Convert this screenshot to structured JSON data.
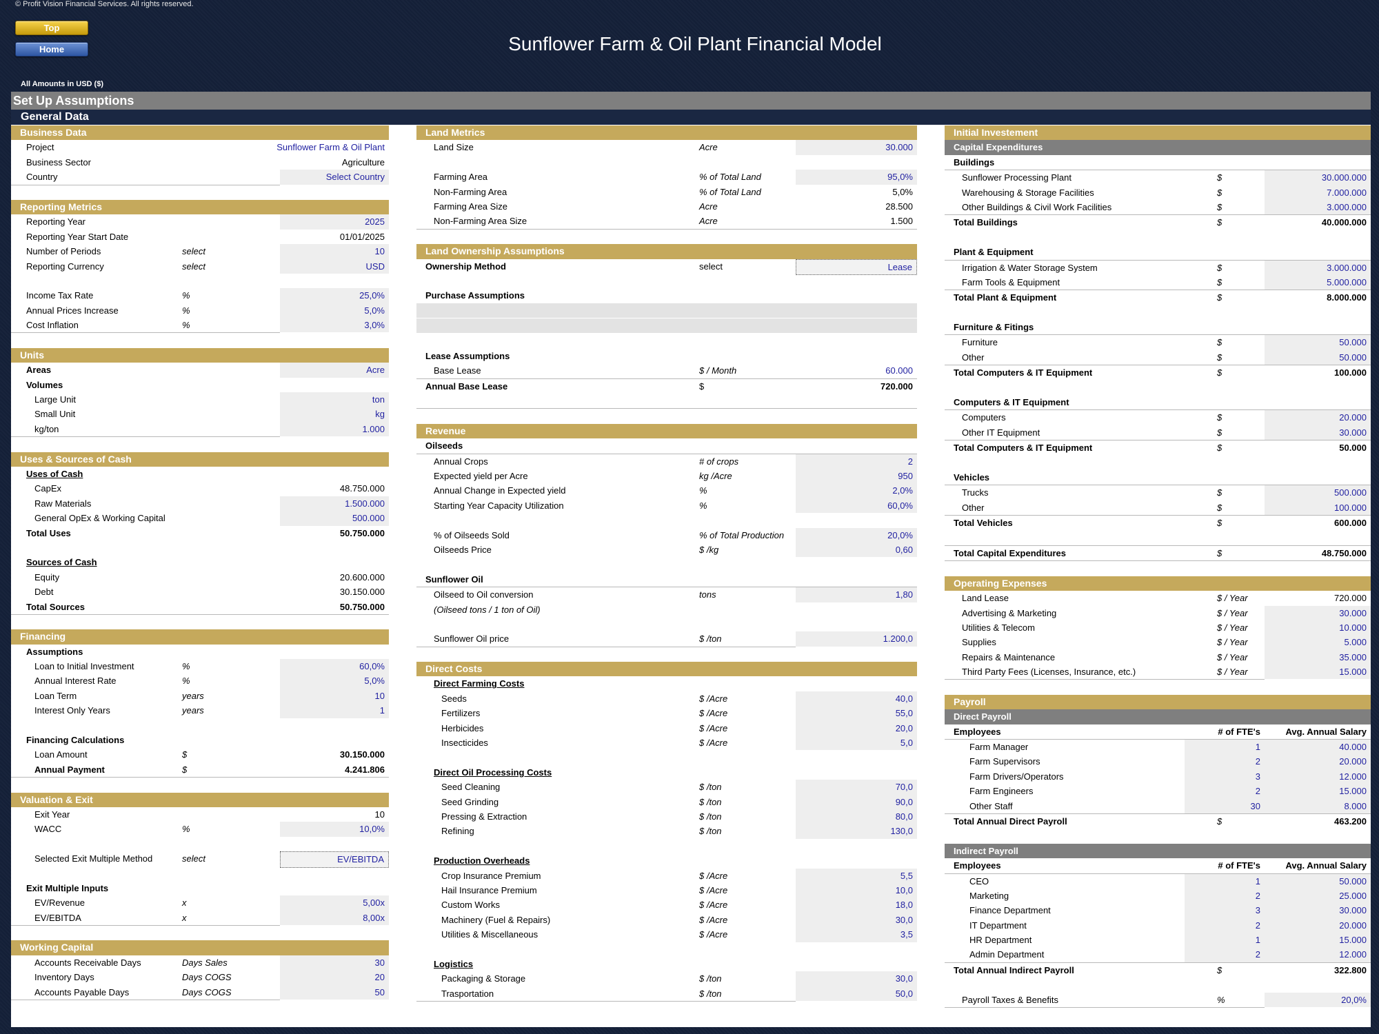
{
  "header": {
    "copyright": "© Profit Vision Financial Services. All rights reserved.",
    "btn_top": "Top",
    "btn_home": "Home",
    "title": "Sunflower Farm & Oil Plant Financial Model",
    "amounts": "All Amounts in  USD ($)",
    "setup": "Set Up Assumptions",
    "general": "General Data"
  },
  "col1": [
    {
      "title": "Business Data",
      "rows": [
        {
          "l": "Project",
          "v": "Sunflower Farm & Oil Plant",
          "t": "blue",
          "w": "wide"
        },
        {
          "l": "Business Sector",
          "v": "Agriculture",
          "w": "wide"
        },
        {
          "l": "Country",
          "v": "Select Country",
          "t": "inp"
        }
      ]
    },
    {
      "title": "Reporting Metrics",
      "rows": [
        {
          "l": "Reporting Year",
          "v": "2025",
          "t": "inp"
        },
        {
          "l": "Reporting Year Start Date",
          "v": "01/01/2025"
        },
        {
          "l": "Number of Periods",
          "u": "select",
          "v": "10",
          "t": "inp"
        },
        {
          "l": "Reporting Currency",
          "u": "select",
          "v": "USD",
          "t": "inp"
        },
        {
          "gap": true
        },
        {
          "l": "Income Tax Rate",
          "u": "%",
          "v": "25,0%",
          "t": "inp"
        },
        {
          "l": "Annual Prices Increase",
          "u": "%",
          "v": "5,0%",
          "t": "inp"
        },
        {
          "l": "Cost Inflation",
          "u": "%",
          "v": "3,0%",
          "t": "inp"
        }
      ]
    },
    {
      "title": "Units",
      "rows": [
        {
          "l": "Areas",
          "b": true,
          "v": "Acre",
          "t": "inp"
        },
        {
          "l": "Volumes",
          "b": true
        },
        {
          "l": "Large Unit",
          "i": 1,
          "v": "ton",
          "t": "inp"
        },
        {
          "l": "Small Unit",
          "i": 1,
          "v": "kg",
          "t": "inp"
        },
        {
          "l": "kg/ton",
          "i": 1,
          "v": "1.000",
          "t": "inp"
        }
      ]
    },
    {
      "title": "Uses & Sources of Cash",
      "rows": [
        {
          "l": "Uses of Cash",
          "b": true,
          "ul": true
        },
        {
          "l": "CapEx",
          "i": 1,
          "v": "48.750.000"
        },
        {
          "l": "Raw Materials",
          "i": 1,
          "v": "1.500.000",
          "t": "inp"
        },
        {
          "l": "General OpEx & Working Capital",
          "i": 1,
          "v": "500.000",
          "t": "inp"
        },
        {
          "l": "Total Uses",
          "b": true,
          "v": "50.750.000",
          "vb": true
        },
        {
          "gap": true
        },
        {
          "l": "Sources of Cash",
          "b": true,
          "ul": true
        },
        {
          "l": "Equity",
          "i": 1,
          "v": "20.600.000"
        },
        {
          "l": "Debt",
          "i": 1,
          "v": "30.150.000"
        },
        {
          "l": "Total Sources",
          "b": true,
          "v": "50.750.000",
          "vb": true
        }
      ]
    },
    {
      "title": "Financing",
      "rows": [
        {
          "l": "Assumptions",
          "b": true
        },
        {
          "l": "Loan to Initial Investment",
          "i": 1,
          "u": "%",
          "v": "60,0%",
          "t": "inp"
        },
        {
          "l": "Annual Interest Rate",
          "i": 1,
          "u": "%",
          "v": "5,0%",
          "t": "inp"
        },
        {
          "l": "Loan Term",
          "i": 1,
          "u": "years",
          "v": "10",
          "t": "inp"
        },
        {
          "l": "Interest Only Years",
          "i": 1,
          "u": "years",
          "v": "1",
          "t": "inp"
        },
        {
          "gap": true
        },
        {
          "l": "Financing Calculations",
          "b": true
        },
        {
          "l": "Loan Amount",
          "i": 1,
          "u": "$",
          "v": "30.150.000",
          "vb": true
        },
        {
          "l": "Annual Payment",
          "i": 1,
          "b": true,
          "u": "$",
          "v": "4.241.806",
          "vb": true
        }
      ]
    },
    {
      "title": "Valuation & Exit",
      "rows": [
        {
          "l": "Exit Year",
          "i": 1,
          "v": "10"
        },
        {
          "l": "WACC",
          "i": 1,
          "u": "%",
          "v": "10,0%",
          "t": "inp"
        },
        {
          "gap": true
        },
        {
          "l": "Selected Exit Multiple Method",
          "i": 1,
          "u": "select",
          "v": "EV/EBITDA",
          "t": "dotted"
        },
        {
          "gap": true
        },
        {
          "l": "Exit Multiple Inputs",
          "b": true
        },
        {
          "l": "EV/Revenue",
          "i": 1,
          "u": "x",
          "v": "5,00x",
          "t": "inp"
        },
        {
          "l": "EV/EBITDA",
          "i": 1,
          "u": "x",
          "v": "8,00x",
          "t": "inp"
        }
      ]
    },
    {
      "title": "Working Capital",
      "rows": [
        {
          "l": "Accounts Receivable Days",
          "i": 1,
          "u": "Days Sales",
          "v": "30",
          "t": "inp"
        },
        {
          "l": "Inventory Days",
          "i": 1,
          "u": "Days COGS",
          "v": "20",
          "t": "inp"
        },
        {
          "l": "Accounts Payable Days",
          "i": 1,
          "u": "Days COGS",
          "v": "50",
          "t": "inp"
        }
      ]
    }
  ],
  "col2": [
    {
      "title": "Land Metrics",
      "rows": [
        {
          "l": "Land Size",
          "i": 1,
          "u": "Acre",
          "v": "30.000",
          "t": "inp"
        },
        {
          "gap": true
        },
        {
          "l": "Farming Area",
          "i": 1,
          "u": "% of Total Land",
          "v": "95,0%",
          "t": "inp"
        },
        {
          "l": "Non-Farming Area",
          "i": 1,
          "u": "% of Total Land",
          "v": "5,0%"
        },
        {
          "l": "Farming Area Size",
          "i": 1,
          "u": "Acre",
          "v": "28.500"
        },
        {
          "l": "Non-Farming Area Size",
          "i": 1,
          "u": "Acre",
          "v": "1.500"
        }
      ]
    },
    {
      "title": "Land Ownership Assumptions",
      "rows": [
        {
          "l": "Ownership Method",
          "b": true,
          "u": "select",
          "un": true,
          "v": "Lease",
          "t": "dotted"
        },
        {
          "gap": true
        },
        {
          "l": "Purchase Assumptions",
          "b": true
        },
        {
          "band": true
        },
        {
          "band": true
        },
        {
          "gap": true
        },
        {
          "l": "Lease Assumptions",
          "b": true
        },
        {
          "l": "Base Lease",
          "i": 1,
          "u": "$ / Month",
          "v": "60.000",
          "t": "blue"
        },
        {
          "l": "Annual Base Lease",
          "b": true,
          "u": "$",
          "un": true,
          "v": "720.000",
          "vb": true,
          "tl": true
        },
        {
          "gap": true
        }
      ]
    },
    {
      "title": "Revenue",
      "rows": [
        {
          "l": "Oilseeds",
          "b": true
        },
        {
          "l": "Annual Crops",
          "i": 1,
          "u": "# of crops",
          "v": "2",
          "t": "inp",
          "tl": true
        },
        {
          "l": "Expected yield per Acre",
          "i": 1,
          "u": "kg /Acre",
          "v": "950",
          "t": "inp"
        },
        {
          "l": "Annual Change in Expected yield",
          "i": 1,
          "u": "%",
          "v": "2,0%",
          "t": "inp"
        },
        {
          "l": "Starting Year Capacity Utilization",
          "i": 1,
          "u": "%",
          "v": "60,0%",
          "t": "inp"
        },
        {
          "gap": true
        },
        {
          "l": "% of Oilseeds Sold",
          "i": 1,
          "u": "% of Total Production",
          "v": "20,0%",
          "t": "inp"
        },
        {
          "l": "Oilseeds Price",
          "i": 1,
          "u": "$ /kg",
          "v": "0,60",
          "t": "inp"
        },
        {
          "gap": true
        },
        {
          "l": "Sunflower Oil",
          "b": true
        },
        {
          "l": "Oilseed to Oil conversion",
          "i": 1,
          "u": "tons",
          "v": "1,80",
          "t": "inp",
          "tl": true
        },
        {
          "l": "(Oilseed tons / 1 ton of Oil)",
          "i": 1,
          "it": true
        },
        {
          "gap": true
        },
        {
          "l": "Sunflower Oil price",
          "i": 1,
          "u": "$ /ton",
          "v": "1.200,0",
          "t": "inp"
        }
      ]
    },
    {
      "title": "Direct Costs",
      "rows": [
        {
          "l": "Direct Farming Costs",
          "i": 1,
          "b": true,
          "ul": true
        },
        {
          "l": "Seeds",
          "i": 2,
          "u": "$ /Acre",
          "v": "40,0",
          "t": "inp"
        },
        {
          "l": "Fertilizers",
          "i": 2,
          "u": "$ /Acre",
          "v": "55,0",
          "t": "inp"
        },
        {
          "l": "Herbicides",
          "i": 2,
          "u": "$ /Acre",
          "v": "20,0",
          "t": "inp"
        },
        {
          "l": "Insecticides",
          "i": 2,
          "u": "$ /Acre",
          "v": "5,0",
          "t": "inp"
        },
        {
          "gap": true
        },
        {
          "l": "Direct Oil Processing Costs",
          "i": 1,
          "b": true,
          "ul": true
        },
        {
          "l": "Seed Cleaning",
          "i": 2,
          "u": "$ /ton",
          "v": "70,0",
          "t": "inp"
        },
        {
          "l": "Seed Grinding",
          "i": 2,
          "u": "$ /ton",
          "v": "90,0",
          "t": "inp"
        },
        {
          "l": "Pressing & Extraction",
          "i": 2,
          "u": "$ /ton",
          "v": "80,0",
          "t": "inp"
        },
        {
          "l": "Refining",
          "i": 2,
          "u": "$ /ton",
          "v": "130,0",
          "t": "inp"
        },
        {
          "gap": true
        },
        {
          "l": "Production Overheads",
          "i": 1,
          "b": true,
          "ul": true
        },
        {
          "l": "Crop Insurance Premium",
          "i": 2,
          "u": "$ /Acre",
          "v": "5,5",
          "t": "inp"
        },
        {
          "l": "Hail Insurance Premium",
          "i": 2,
          "u": "$ /Acre",
          "v": "10,0",
          "t": "inp"
        },
        {
          "l": "Custom Works",
          "i": 2,
          "u": "$ /Acre",
          "v": "18,0",
          "t": "inp"
        },
        {
          "l": "Machinery (Fuel & Repairs)",
          "i": 2,
          "u": "$ /Acre",
          "v": "30,0",
          "t": "inp"
        },
        {
          "l": "Utilities & Miscellaneous",
          "i": 2,
          "u": "$ /Acre",
          "v": "3,5",
          "t": "inp"
        },
        {
          "gap": true
        },
        {
          "l": "Logistics",
          "i": 1,
          "b": true,
          "ul": true
        },
        {
          "l": "Packaging & Storage",
          "i": 2,
          "u": "$ /ton",
          "v": "30,0",
          "t": "inp"
        },
        {
          "l": "Trasportation",
          "i": 2,
          "u": "$ /ton",
          "v": "50,0",
          "t": "inp"
        }
      ]
    }
  ],
  "col3": [
    {
      "title": "Initial Investement",
      "sub": "Capital Expenditures",
      "rows": [
        {
          "l": "Buildings",
          "b": true
        },
        {
          "l": "Sunflower Processing Plant",
          "i": 1,
          "u": "$",
          "v": "30.000.000",
          "t": "inp",
          "tl": true
        },
        {
          "l": "Warehousing & Storage Facilities",
          "i": 1,
          "u": "$",
          "v": "7.000.000",
          "t": "inp"
        },
        {
          "l": "Other Buildings & Civil Work Facilities",
          "i": 1,
          "u": "$",
          "v": "3.000.000",
          "t": "inp"
        },
        {
          "l": "Total Buildings",
          "b": true,
          "u": "$",
          "v": "40.000.000",
          "vb": true,
          "tl": true
        },
        {
          "gap": true
        },
        {
          "l": "Plant & Equipment",
          "b": true
        },
        {
          "l": "Irrigation & Water Storage System",
          "i": 1,
          "u": "$",
          "v": "3.000.000",
          "t": "inp",
          "tl": true
        },
        {
          "l": "Farm Tools & Equipment",
          "i": 1,
          "u": "$",
          "v": "5.000.000",
          "t": "inp"
        },
        {
          "l": "Total Plant & Equipment",
          "b": true,
          "u": "$",
          "v": "8.000.000",
          "vb": true,
          "tl": true
        },
        {
          "gap": true
        },
        {
          "l": "Furniture & Fitings",
          "b": true
        },
        {
          "l": "Furniture",
          "i": 1,
          "u": "$",
          "v": "50.000",
          "t": "inp",
          "tl": true
        },
        {
          "l": "Other",
          "i": 1,
          "u": "$",
          "v": "50.000",
          "t": "inp"
        },
        {
          "l": "Total Computers & IT Equipment",
          "b": true,
          "u": "$",
          "v": "100.000",
          "vb": true,
          "tl": true
        },
        {
          "gap": true
        },
        {
          "l": "Computers & IT Equipment",
          "b": true
        },
        {
          "l": "Computers",
          "i": 1,
          "u": "$",
          "v": "20.000",
          "t": "inp",
          "tl": true
        },
        {
          "l": "Other IT Equipment",
          "i": 1,
          "u": "$",
          "v": "30.000",
          "t": "inp"
        },
        {
          "l": "Total Computers & IT Equipment",
          "b": true,
          "u": "$",
          "v": "50.000",
          "vb": true,
          "tl": true
        },
        {
          "gap": true
        },
        {
          "l": "Vehicles",
          "b": true
        },
        {
          "l": "Trucks",
          "i": 1,
          "u": "$",
          "v": "500.000",
          "t": "inp",
          "tl": true
        },
        {
          "l": "Other",
          "i": 1,
          "u": "$",
          "v": "100.000",
          "t": "inp"
        },
        {
          "l": "Total Vehicles",
          "b": true,
          "u": "$",
          "v": "600.000",
          "vb": true,
          "tl": true
        },
        {
          "gap": true
        },
        {
          "l": "Total Capital Expenditures",
          "b": true,
          "u": "$",
          "v": "48.750.000",
          "vb": true,
          "tl": true
        }
      ]
    },
    {
      "title": "Operating Expenses",
      "rows": [
        {
          "l": "Land Lease",
          "i": 1,
          "u": "$ / Year",
          "v": "720.000"
        },
        {
          "l": "Advertising & Marketing",
          "i": 1,
          "u": "$ / Year",
          "v": "30.000",
          "t": "inp"
        },
        {
          "l": "Utilities & Telecom",
          "i": 1,
          "u": "$ / Year",
          "v": "10.000",
          "t": "inp"
        },
        {
          "l": "Supplies",
          "i": 1,
          "u": "$ / Year",
          "v": "5.000",
          "t": "inp"
        },
        {
          "l": "Repairs & Maintenance",
          "i": 1,
          "u": "$ / Year",
          "v": "35.000",
          "t": "inp"
        },
        {
          "l": "Third Party Fees (Licenses, Insurance, etc.)",
          "i": 1,
          "u": "$ / Year",
          "v": "15.000",
          "t": "inp"
        }
      ]
    },
    {
      "title": "Payroll",
      "sub": "Direct Payroll",
      "payroll": true,
      "rows": [
        {
          "l": "Employees",
          "b": true,
          "f": "# of FTE's",
          "v": "Avg. Annual Salary",
          "hdr": true
        },
        {
          "l": "Farm Manager",
          "i": 2,
          "f": "1",
          "v": "40.000",
          "t": "inp",
          "tl": true
        },
        {
          "l": "Farm Supervisors",
          "i": 2,
          "f": "2",
          "v": "20.000",
          "t": "inp"
        },
        {
          "l": "Farm Drivers/Operators",
          "i": 2,
          "f": "3",
          "v": "12.000",
          "t": "inp"
        },
        {
          "l": "Farm Engineers",
          "i": 2,
          "f": "2",
          "v": "15.000",
          "t": "inp"
        },
        {
          "l": "Other Staff",
          "i": 2,
          "f": "30",
          "v": "8.000",
          "t": "inp"
        },
        {
          "l": "Total Annual Direct Payroll",
          "b": true,
          "u": "$",
          "v": "463.200",
          "vb": true,
          "tl": true
        },
        {
          "gap": true
        },
        {
          "sub": "Indirect Payroll"
        },
        {
          "l": "Employees",
          "b": true,
          "f": "# of FTE's",
          "v": "Avg. Annual Salary",
          "hdr": true
        },
        {
          "l": "CEO",
          "i": 2,
          "f": "1",
          "v": "50.000",
          "t": "inp",
          "tl": true
        },
        {
          "l": "Marketing",
          "i": 2,
          "f": "2",
          "v": "25.000",
          "t": "inp"
        },
        {
          "l": "Finance Department",
          "i": 2,
          "f": "3",
          "v": "30.000",
          "t": "inp"
        },
        {
          "l": "IT Department",
          "i": 2,
          "f": "2",
          "v": "20.000",
          "t": "inp"
        },
        {
          "l": "HR Department",
          "i": 2,
          "f": "1",
          "v": "15.000",
          "t": "inp"
        },
        {
          "l": "Admin Department",
          "i": 2,
          "f": "2",
          "v": "12.000",
          "t": "inp"
        },
        {
          "l": "Total Annual Indirect Payroll",
          "b": true,
          "u": "$",
          "v": "322.800",
          "vb": true,
          "tl": true
        },
        {
          "gap": true
        },
        {
          "l": "Payroll Taxes & Benefits",
          "i": 1,
          "u": "%",
          "v": "20,0%",
          "t": "inp"
        }
      ]
    }
  ]
}
